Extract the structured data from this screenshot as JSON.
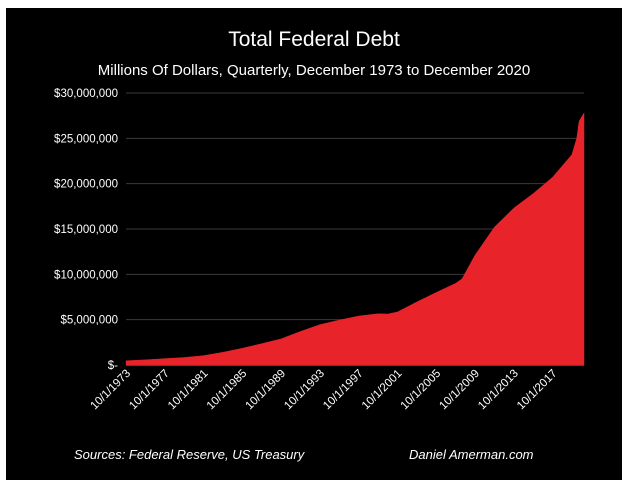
{
  "chart_data": {
    "type": "area",
    "title": "Total Federal Debt",
    "subtitle": "Millions Of Dollars, Quarterly,  December 1973 to December 2020",
    "xlabel": "",
    "ylabel": "",
    "ylim": [
      0,
      30000000
    ],
    "xlim": [
      "1973-10-01",
      "2020-12-31"
    ],
    "grid": true,
    "y_ticks": [
      {
        "value": 0,
        "label": "$-"
      },
      {
        "value": 5000000,
        "label": "$5,000,000"
      },
      {
        "value": 10000000,
        "label": "$10,000,000"
      },
      {
        "value": 15000000,
        "label": "$15,000,000"
      },
      {
        "value": 20000000,
        "label": "$20,000,000"
      },
      {
        "value": 25000000,
        "label": "$25,000,000"
      },
      {
        "value": 30000000,
        "label": "$30,000,000"
      }
    ],
    "x_ticks": [
      {
        "value": "1973-10-01",
        "label": "10/1/1973"
      },
      {
        "value": "1977-10-01",
        "label": "10/1/1977"
      },
      {
        "value": "1981-10-01",
        "label": "10/1/1981"
      },
      {
        "value": "1985-10-01",
        "label": "10/1/1985"
      },
      {
        "value": "1989-10-01",
        "label": "10/1/1989"
      },
      {
        "value": "1993-10-01",
        "label": "10/1/1993"
      },
      {
        "value": "1997-10-01",
        "label": "10/1/1997"
      },
      {
        "value": "2001-10-01",
        "label": "10/1/2001"
      },
      {
        "value": "2005-10-01",
        "label": "10/1/2005"
      },
      {
        "value": "2009-10-01",
        "label": "10/1/2009"
      },
      {
        "value": "2013-10-01",
        "label": "10/1/2013"
      },
      {
        "value": "2017-10-01",
        "label": "10/1/2017"
      }
    ],
    "series": [
      {
        "color": "#e8232a",
        "points": [
          {
            "x": "1973-10-01",
            "y": 470000
          },
          {
            "x": "1975-10-01",
            "y": 570000
          },
          {
            "x": "1977-10-01",
            "y": 700000
          },
          {
            "x": "1979-10-01",
            "y": 830000
          },
          {
            "x": "1981-10-01",
            "y": 1030000
          },
          {
            "x": "1983-10-01",
            "y": 1400000
          },
          {
            "x": "1985-10-01",
            "y": 1850000
          },
          {
            "x": "1987-10-01",
            "y": 2350000
          },
          {
            "x": "1989-10-01",
            "y": 2880000
          },
          {
            "x": "1991-10-01",
            "y": 3700000
          },
          {
            "x": "1993-10-01",
            "y": 4450000
          },
          {
            "x": "1995-10-01",
            "y": 4950000
          },
          {
            "x": "1997-10-01",
            "y": 5400000
          },
          {
            "x": "1999-10-01",
            "y": 5650000
          },
          {
            "x": "2000-10-01",
            "y": 5620000
          },
          {
            "x": "2001-10-01",
            "y": 5850000
          },
          {
            "x": "2003-10-01",
            "y": 6950000
          },
          {
            "x": "2005-10-01",
            "y": 8000000
          },
          {
            "x": "2007-10-01",
            "y": 9000000
          },
          {
            "x": "2008-06-01",
            "y": 9500000
          },
          {
            "x": "2009-10-01",
            "y": 12100000
          },
          {
            "x": "2011-10-01",
            "y": 15200000
          },
          {
            "x": "2013-10-01",
            "y": 17300000
          },
          {
            "x": "2015-10-01",
            "y": 18900000
          },
          {
            "x": "2017-10-01",
            "y": 20700000
          },
          {
            "x": "2019-10-01",
            "y": 23200000
          },
          {
            "x": "2020-04-01",
            "y": 25000000
          },
          {
            "x": "2020-07-01",
            "y": 26900000
          },
          {
            "x": "2020-12-31",
            "y": 27800000
          }
        ]
      }
    ]
  },
  "footer": {
    "sources": "Sources:  Federal Reserve, US Treasury",
    "credit": "Daniel Amerman.com"
  },
  "colors": {
    "background": "#000000",
    "fill": "#e8232a",
    "text": "#ffffff",
    "grid": "#3a3a3a"
  }
}
